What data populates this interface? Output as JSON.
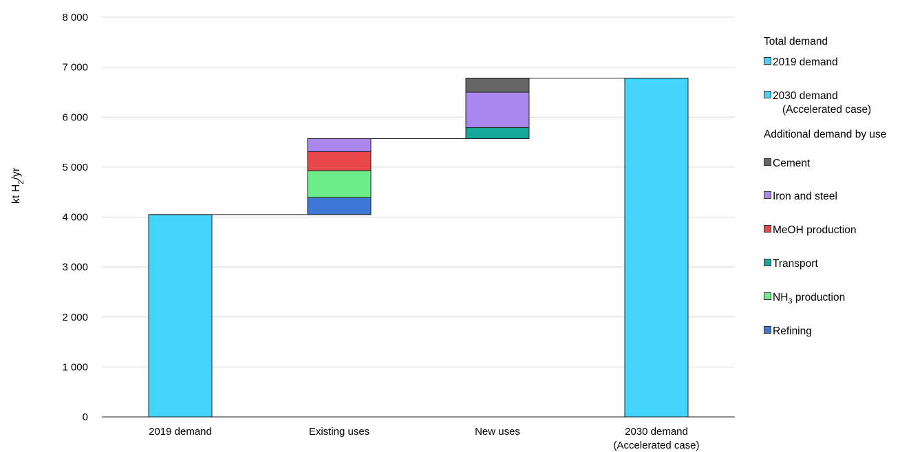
{
  "chart_data": {
    "type": "bar",
    "subtype": "waterfall",
    "ylabel": "kt H₂/yr",
    "ylim": [
      0,
      8000
    ],
    "yticks": [
      0,
      1000,
      2000,
      3000,
      4000,
      5000,
      6000,
      7000,
      8000
    ],
    "ytick_labels": [
      "0",
      "1 000",
      "2 000",
      "3 000",
      "4 000",
      "5 000",
      "6 000",
      "7 000",
      "8 000"
    ],
    "grid": true,
    "legend_position": "right",
    "categories": [
      {
        "line1": "2019 demand",
        "line2": ""
      },
      {
        "line1": "Existing uses",
        "line2": ""
      },
      {
        "line1": "New uses",
        "line2": ""
      },
      {
        "line1": "2030 demand",
        "line2": "(Accelerated case)"
      }
    ],
    "totals": [
      {
        "category_index": 0,
        "series": "2019 demand",
        "value": 4050
      },
      {
        "category_index": 3,
        "series": "2030 demand (Accelerated case)",
        "value": 6780
      }
    ],
    "increments": [
      {
        "category_index": 1,
        "base": 4050,
        "segments": [
          {
            "series": "Refining",
            "value": 340
          },
          {
            "series": "NH3 production",
            "value": 540
          },
          {
            "series": "MeOH production",
            "value": 380
          },
          {
            "series": "Iron and steel",
            "value": 260
          }
        ]
      },
      {
        "category_index": 2,
        "base": 5570,
        "segments": [
          {
            "series": "Transport",
            "value": 220
          },
          {
            "series": "Iron and steel",
            "value": 710
          },
          {
            "series": "Cement",
            "value": 280
          }
        ]
      }
    ],
    "colors": {
      "2019 demand": "#44D4FA",
      "2030 demand (Accelerated case)": "#44D4FA",
      "Cement": "#666666",
      "Iron and steel": "#AA88EE",
      "MeOH production": "#E84848",
      "Transport": "#16A89A",
      "NH3 production": "#6DEC8A",
      "Refining": "#3D78D6"
    }
  },
  "legend": {
    "total_heading": "Total demand",
    "additional_heading": "Additional demand by use",
    "items": [
      {
        "key": "2019 demand",
        "line1": "2019 demand",
        "line2": "",
        "sub": ""
      },
      {
        "key": "2030 demand (Accelerated case)",
        "line1": "2030 demand",
        "line2": "(Accelerated case)",
        "sub": ""
      },
      {
        "key": "Cement",
        "line1": "Cement",
        "line2": "",
        "sub": ""
      },
      {
        "key": "Iron and steel",
        "line1": "Iron and steel",
        "line2": "",
        "sub": ""
      },
      {
        "key": "MeOH production",
        "line1": "MeOH production",
        "line2": "",
        "sub": ""
      },
      {
        "key": "Transport",
        "line1": "Transport",
        "line2": "",
        "sub": ""
      },
      {
        "key": "NH3 production",
        "line1": "NH",
        "line2": "",
        "sub": "3",
        "suffix": " production"
      },
      {
        "key": "Refining",
        "line1": "Refining",
        "line2": "",
        "sub": ""
      }
    ]
  }
}
